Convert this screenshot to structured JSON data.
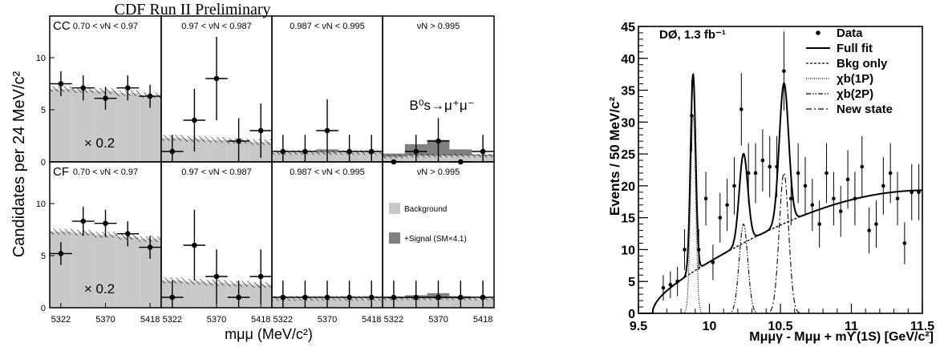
{
  "chart_data": [
    {
      "type": "bar",
      "title": "CDF Run II Preliminary",
      "ylabel": "Candidates per 24 MeV/c²",
      "xlabel": "mμμ (MeV/c²)",
      "x_tick_labels": [
        "5322",
        "5370",
        "5418"
      ],
      "xlim": [
        5310,
        5430
      ],
      "ylim": [
        0,
        14
      ],
      "y_ticks": [
        "0",
        "5",
        "10"
      ],
      "decay_label": "B⁰s→μ⁺μ⁻",
      "scale_note": "× 0.2",
      "bin_centers": [
        5322,
        5346,
        5370,
        5394,
        5418
      ],
      "legend": [
        "Background",
        "+Signal (SM×4.1)"
      ],
      "colors": {
        "background": "#c8c8c8",
        "signal": "#808080"
      },
      "rows": [
        {
          "label": "CC",
          "panels": [
            {
              "bin_label": "0.70 < νN < 0.97",
              "background": [
                7.0,
                6.9,
                6.8,
                6.6,
                6.4
              ],
              "signal": [
                0,
                0,
                0,
                0,
                0
              ],
              "data": [
                7.5,
                7.1,
                6.1,
                7.1,
                6.3
              ],
              "err": [
                1.2,
                1.2,
                1.1,
                1.2,
                1.1
              ],
              "band": 0.55
            },
            {
              "bin_label": "0.97 < νN < 0.987",
              "background": [
                2.3,
                2.2,
                2.1,
                2.0,
                1.9
              ],
              "signal": [
                0,
                0,
                0,
                0,
                0
              ],
              "data": [
                1,
                4,
                8,
                2,
                3
              ],
              "err": [
                1.6,
                3.0,
                4.0,
                2.2,
                2.6
              ],
              "band": 0.55
            },
            {
              "bin_label": "0.987 < νN < 0.995",
              "background": [
                0.9,
                0.9,
                0.9,
                0.9,
                0.9
              ],
              "signal": [
                0,
                0,
                0.3,
                0,
                0
              ],
              "data": [
                1,
                1,
                3,
                1,
                1
              ],
              "err": [
                1.6,
                1.6,
                3.0,
                1.6,
                1.6
              ],
              "band": 0.45
            },
            {
              "bin_label": "νN > 0.995",
              "background": [
                0.5,
                0.6,
                0.6,
                0.6,
                0.6
              ],
              "signal": [
                0.3,
                1.1,
                1.5,
                0.6,
                0.1
              ],
              "data": [
                0,
                1,
                2,
                0,
                1
              ],
              "err": [
                0,
                1.6,
                2.2,
                0,
                1.6
              ],
              "band": 0.35
            }
          ]
        },
        {
          "label": "CF",
          "panels": [
            {
              "bin_label": "0.70 < νN < 0.97",
              "background": [
                7.3,
                7.2,
                7.0,
                6.8,
                6.6
              ],
              "signal": [
                0,
                0,
                0,
                0,
                0
              ],
              "data": [
                5.2,
                8.3,
                8.1,
                7.1,
                5.8
              ],
              "err": [
                1.1,
                1.4,
                1.3,
                1.2,
                1.1
              ],
              "band": 0.55
            },
            {
              "bin_label": "0.97 < νN < 0.987",
              "background": [
                2.6,
                2.5,
                2.4,
                2.3,
                2.2
              ],
              "signal": [
                0,
                0,
                0,
                0,
                0
              ],
              "data": [
                1,
                6,
                3,
                1,
                3
              ],
              "err": [
                1.6,
                3.4,
                2.6,
                1.6,
                2.6
              ],
              "band": 0.55
            },
            {
              "bin_label": "0.987 < νN < 0.995",
              "background": [
                0.9,
                0.9,
                0.9,
                0.9,
                0.9
              ],
              "signal": [
                0,
                0,
                0,
                0,
                0
              ],
              "data": [
                1,
                1,
                1,
                1,
                1
              ],
              "err": [
                1.6,
                1.6,
                1.6,
                1.6,
                1.6
              ],
              "band": 0.45
            },
            {
              "bin_label": "νN > 0.995",
              "background": [
                0.9,
                0.9,
                0.9,
                0.9,
                0.9
              ],
              "signal": [
                0.1,
                0.3,
                0.5,
                0.2,
                0
              ],
              "data": [
                1,
                1,
                1,
                1,
                1
              ],
              "err": [
                1.6,
                1.6,
                1.6,
                1.6,
                1.6
              ],
              "band": 0.35
            }
          ]
        }
      ]
    },
    {
      "type": "line",
      "experiment_label": "DØ, 1.3 fb⁻¹",
      "ylabel": "Events / 50 MeV/c²",
      "xlabel": "Mμμγ - Mμμ + mϒ(1S) [GeV/c²]",
      "xlim": [
        9.5,
        11.5
      ],
      "ylim": [
        0,
        45
      ],
      "x_ticks": [
        9.5,
        10,
        10.5,
        11,
        11.5
      ],
      "x_tick_labels": [
        "9.5",
        "10",
        "10.5",
        "11",
        "11.5"
      ],
      "y_ticks": [
        0,
        5,
        10,
        15,
        20,
        25,
        30,
        35,
        40,
        45
      ],
      "y_tick_labels": [
        "0",
        "5",
        "10",
        "15",
        "20",
        "25",
        "30",
        "35",
        "40",
        "45"
      ],
      "legend_position": "top-right",
      "legend": [
        {
          "name": "Data",
          "style": "points"
        },
        {
          "name": "Full fit",
          "style": "solid"
        },
        {
          "name": "Bkg only",
          "style": "dashed"
        },
        {
          "name": "χb(1P)",
          "style": "dotted"
        },
        {
          "name": "χb(2P)",
          "style": "dash-dot-dot"
        },
        {
          "name": "New state",
          "style": "dash-dot"
        }
      ],
      "model": {
        "bkg_threshold": 9.6,
        "bkg_plateau": 17.2,
        "bkg_peak_x": 10.9,
        "bkg_decay": 2.2,
        "peaks": [
          {
            "name": "χb(1P)",
            "mean": 9.885,
            "sigma": 0.018,
            "amplitude": 31
          },
          {
            "name": "χb(2P)",
            "mean": 10.24,
            "sigma": 0.03,
            "amplitude": 14
          },
          {
            "name": "New state",
            "mean": 10.525,
            "sigma": 0.033,
            "amplitude": 22
          }
        ]
      },
      "data_points": {
        "x": [
          9.675,
          9.725,
          9.775,
          9.825,
          9.875,
          9.925,
          9.975,
          10.025,
          10.075,
          10.125,
          10.175,
          10.225,
          10.275,
          10.325,
          10.375,
          10.425,
          10.475,
          10.525,
          10.575,
          10.625,
          10.675,
          10.725,
          10.775,
          10.825,
          10.875,
          10.925,
          10.975,
          11.025,
          11.075,
          11.125,
          11.175,
          11.225,
          11.275,
          11.325,
          11.375,
          11.425,
          11.475
        ],
        "y": [
          4,
          4.5,
          5,
          10,
          31,
          10,
          18,
          8,
          15,
          17,
          20,
          32,
          22,
          22,
          24,
          23,
          23,
          38,
          18,
          22,
          20,
          17,
          14,
          22,
          18,
          16,
          21,
          18,
          23,
          13,
          14,
          20,
          22,
          18,
          11,
          19,
          19
        ],
        "err": [
          2,
          2.1,
          2.3,
          3.2,
          5.6,
          3.2,
          4.2,
          2.8,
          3.9,
          4.1,
          4.5,
          5.7,
          4.7,
          4.7,
          4.9,
          4.8,
          4.8,
          6.2,
          4.2,
          4.7,
          4.5,
          4.1,
          3.7,
          4.7,
          4.2,
          4,
          4.6,
          4.2,
          4.8,
          3.6,
          3.7,
          4.5,
          4.7,
          4.2,
          3.3,
          4.4,
          4.4
        ]
      }
    }
  ]
}
